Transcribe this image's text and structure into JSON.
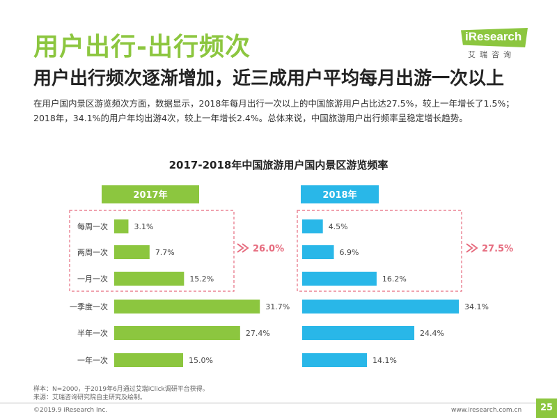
{
  "header": {
    "title": "用户出行-出行频次",
    "subtitle": "用户出行频次逐渐增加，近三成用户平均每月出游一次以上",
    "intro": "在用户国内景区游览频次方面，数据显示，2018年每月出行一次以上的中国旅游用户占比达27.5%，较上一年增长了1.5%；2018年，34.1%的用户年均出游4次，较上一年增长2.4%。总体来说，中国旅游用户出行频率呈稳定增长趋势。"
  },
  "logo": {
    "brand": "iResearch",
    "brand_cn": "艾瑞咨询"
  },
  "colors": {
    "green": "#8cc63f",
    "blue": "#29b7e8",
    "highlight": "#e66b7e",
    "text": "#333333"
  },
  "chart_data": {
    "type": "bar",
    "orientation": "horizontal",
    "title": "2017-2018年中国旅游用户国内景区游览频率",
    "categories": [
      "每周一次",
      "两周一次",
      "一月一次",
      "一季度一次",
      "半年一次",
      "一年一次"
    ],
    "series": [
      {
        "name": "2017年",
        "values": [
          3.1,
          7.7,
          15.2,
          31.7,
          27.4,
          15.0
        ],
        "labels": [
          "3.1%",
          "7.7%",
          "15.2%",
          "31.7%",
          "27.4%",
          "15.0%"
        ],
        "color": "#8cc63f",
        "grouped_total": "26.0%"
      },
      {
        "name": "2018年",
        "values": [
          4.5,
          6.9,
          16.2,
          34.1,
          24.4,
          14.1
        ],
        "labels": [
          "4.5%",
          "6.9%",
          "16.2%",
          "34.1%",
          "24.4%",
          "14.1%"
        ],
        "color": "#29b7e8",
        "grouped_total": "27.5%"
      }
    ],
    "grouped_categories": [
      "每周一次",
      "两周一次",
      "一月一次"
    ],
    "unit": "%"
  },
  "footer": {
    "sample": "样本：N=2000，于2019年6月通过艾瑞iClick调研平台获得。",
    "source": "来源：艾瑞咨询研究院自主研究及绘制。",
    "copyright": "©2019.9 iResearch Inc.",
    "url": "www.iresearch.com.cn",
    "page": "25"
  }
}
